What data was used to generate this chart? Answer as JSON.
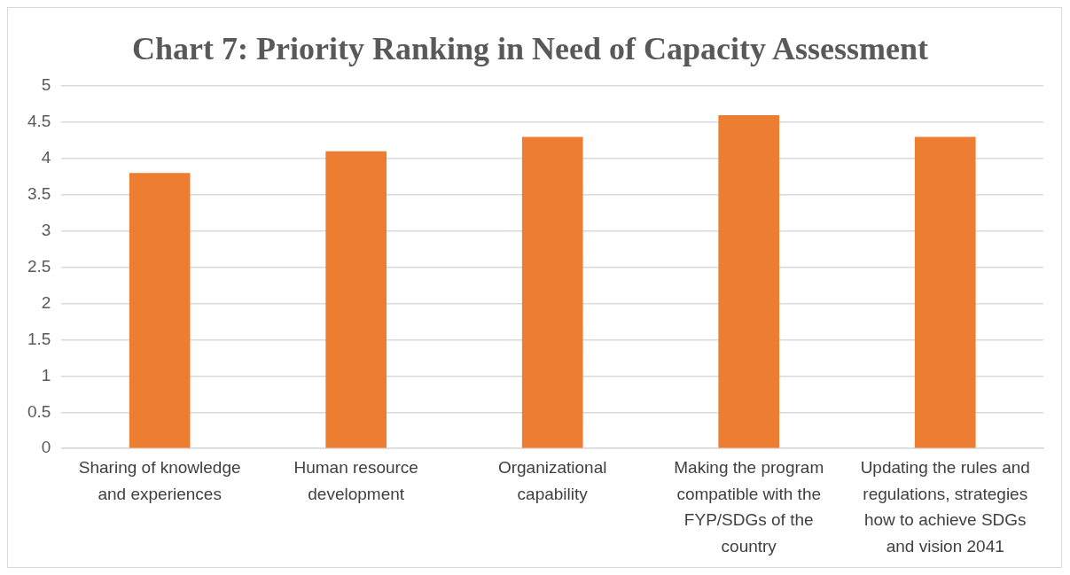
{
  "chart_data": {
    "type": "bar",
    "title": "Chart 7: Priority Ranking in Need of Capacity Assessment",
    "categories": [
      "Sharing of knowledge and experiences",
      "Human resource development",
      "Organizational capability",
      "Making the program compatible with the FYP/SDGs of the country",
      "Updating the rules and regulations, strategies how to achieve SDGs and vision 2041"
    ],
    "values": [
      3.8,
      4.1,
      4.3,
      4.6,
      4.3
    ],
    "color": "#ed7d31",
    "ylim": [
      0,
      5
    ],
    "yticks": [
      0,
      0.5,
      1,
      1.5,
      2,
      2.5,
      3,
      3.5,
      4,
      4.5,
      5
    ],
    "grid": "y"
  }
}
